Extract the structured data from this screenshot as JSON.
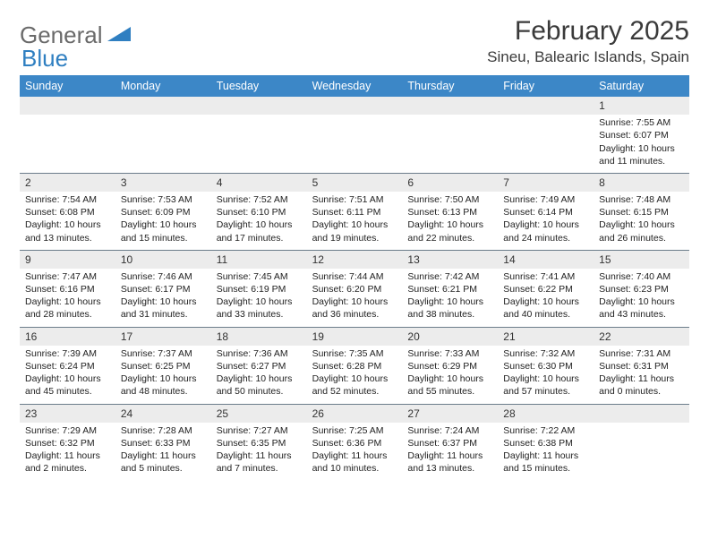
{
  "logo": {
    "textA": "General",
    "textB": "Blue"
  },
  "title": "February 2025",
  "location": "Sineu, Balearic Islands, Spain",
  "colors": {
    "header_bg": "#3c87c7",
    "header_text": "#ffffff",
    "daynum_bg": "#ececec",
    "week_border": "#6b7c8a",
    "logo_gray": "#6a6a6a",
    "logo_blue": "#2f7fc1"
  },
  "daysOfWeek": [
    "Sunday",
    "Monday",
    "Tuesday",
    "Wednesday",
    "Thursday",
    "Friday",
    "Saturday"
  ],
  "weeks": [
    [
      {
        "empty": true
      },
      {
        "empty": true
      },
      {
        "empty": true
      },
      {
        "empty": true
      },
      {
        "empty": true
      },
      {
        "empty": true
      },
      {
        "num": "1",
        "sunrise": "Sunrise: 7:55 AM",
        "sunset": "Sunset: 6:07 PM",
        "daylight": "Daylight: 10 hours and 11 minutes."
      }
    ],
    [
      {
        "num": "2",
        "sunrise": "Sunrise: 7:54 AM",
        "sunset": "Sunset: 6:08 PM",
        "daylight": "Daylight: 10 hours and 13 minutes."
      },
      {
        "num": "3",
        "sunrise": "Sunrise: 7:53 AM",
        "sunset": "Sunset: 6:09 PM",
        "daylight": "Daylight: 10 hours and 15 minutes."
      },
      {
        "num": "4",
        "sunrise": "Sunrise: 7:52 AM",
        "sunset": "Sunset: 6:10 PM",
        "daylight": "Daylight: 10 hours and 17 minutes."
      },
      {
        "num": "5",
        "sunrise": "Sunrise: 7:51 AM",
        "sunset": "Sunset: 6:11 PM",
        "daylight": "Daylight: 10 hours and 19 minutes."
      },
      {
        "num": "6",
        "sunrise": "Sunrise: 7:50 AM",
        "sunset": "Sunset: 6:13 PM",
        "daylight": "Daylight: 10 hours and 22 minutes."
      },
      {
        "num": "7",
        "sunrise": "Sunrise: 7:49 AM",
        "sunset": "Sunset: 6:14 PM",
        "daylight": "Daylight: 10 hours and 24 minutes."
      },
      {
        "num": "8",
        "sunrise": "Sunrise: 7:48 AM",
        "sunset": "Sunset: 6:15 PM",
        "daylight": "Daylight: 10 hours and 26 minutes."
      }
    ],
    [
      {
        "num": "9",
        "sunrise": "Sunrise: 7:47 AM",
        "sunset": "Sunset: 6:16 PM",
        "daylight": "Daylight: 10 hours and 28 minutes."
      },
      {
        "num": "10",
        "sunrise": "Sunrise: 7:46 AM",
        "sunset": "Sunset: 6:17 PM",
        "daylight": "Daylight: 10 hours and 31 minutes."
      },
      {
        "num": "11",
        "sunrise": "Sunrise: 7:45 AM",
        "sunset": "Sunset: 6:19 PM",
        "daylight": "Daylight: 10 hours and 33 minutes."
      },
      {
        "num": "12",
        "sunrise": "Sunrise: 7:44 AM",
        "sunset": "Sunset: 6:20 PM",
        "daylight": "Daylight: 10 hours and 36 minutes."
      },
      {
        "num": "13",
        "sunrise": "Sunrise: 7:42 AM",
        "sunset": "Sunset: 6:21 PM",
        "daylight": "Daylight: 10 hours and 38 minutes."
      },
      {
        "num": "14",
        "sunrise": "Sunrise: 7:41 AM",
        "sunset": "Sunset: 6:22 PM",
        "daylight": "Daylight: 10 hours and 40 minutes."
      },
      {
        "num": "15",
        "sunrise": "Sunrise: 7:40 AM",
        "sunset": "Sunset: 6:23 PM",
        "daylight": "Daylight: 10 hours and 43 minutes."
      }
    ],
    [
      {
        "num": "16",
        "sunrise": "Sunrise: 7:39 AM",
        "sunset": "Sunset: 6:24 PM",
        "daylight": "Daylight: 10 hours and 45 minutes."
      },
      {
        "num": "17",
        "sunrise": "Sunrise: 7:37 AM",
        "sunset": "Sunset: 6:25 PM",
        "daylight": "Daylight: 10 hours and 48 minutes."
      },
      {
        "num": "18",
        "sunrise": "Sunrise: 7:36 AM",
        "sunset": "Sunset: 6:27 PM",
        "daylight": "Daylight: 10 hours and 50 minutes."
      },
      {
        "num": "19",
        "sunrise": "Sunrise: 7:35 AM",
        "sunset": "Sunset: 6:28 PM",
        "daylight": "Daylight: 10 hours and 52 minutes."
      },
      {
        "num": "20",
        "sunrise": "Sunrise: 7:33 AM",
        "sunset": "Sunset: 6:29 PM",
        "daylight": "Daylight: 10 hours and 55 minutes."
      },
      {
        "num": "21",
        "sunrise": "Sunrise: 7:32 AM",
        "sunset": "Sunset: 6:30 PM",
        "daylight": "Daylight: 10 hours and 57 minutes."
      },
      {
        "num": "22",
        "sunrise": "Sunrise: 7:31 AM",
        "sunset": "Sunset: 6:31 PM",
        "daylight": "Daylight: 11 hours and 0 minutes."
      }
    ],
    [
      {
        "num": "23",
        "sunrise": "Sunrise: 7:29 AM",
        "sunset": "Sunset: 6:32 PM",
        "daylight": "Daylight: 11 hours and 2 minutes."
      },
      {
        "num": "24",
        "sunrise": "Sunrise: 7:28 AM",
        "sunset": "Sunset: 6:33 PM",
        "daylight": "Daylight: 11 hours and 5 minutes."
      },
      {
        "num": "25",
        "sunrise": "Sunrise: 7:27 AM",
        "sunset": "Sunset: 6:35 PM",
        "daylight": "Daylight: 11 hours and 7 minutes."
      },
      {
        "num": "26",
        "sunrise": "Sunrise: 7:25 AM",
        "sunset": "Sunset: 6:36 PM",
        "daylight": "Daylight: 11 hours and 10 minutes."
      },
      {
        "num": "27",
        "sunrise": "Sunrise: 7:24 AM",
        "sunset": "Sunset: 6:37 PM",
        "daylight": "Daylight: 11 hours and 13 minutes."
      },
      {
        "num": "28",
        "sunrise": "Sunrise: 7:22 AM",
        "sunset": "Sunset: 6:38 PM",
        "daylight": "Daylight: 11 hours and 15 minutes."
      },
      {
        "empty": true
      }
    ]
  ]
}
